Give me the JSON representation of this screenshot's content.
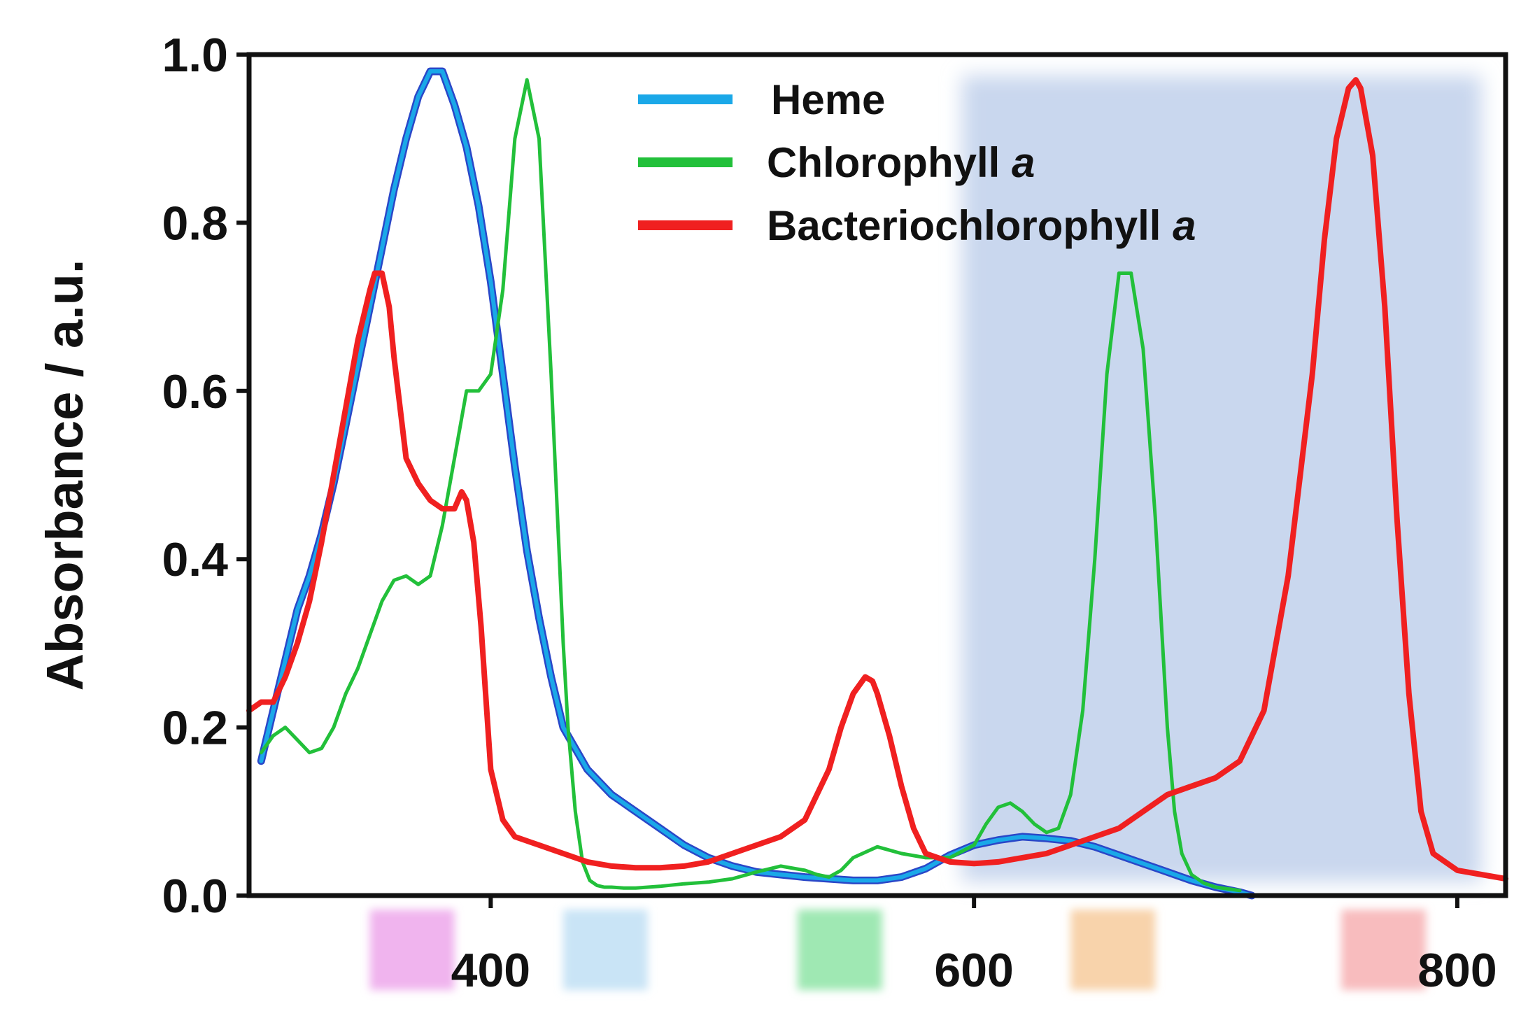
{
  "chart_data": {
    "type": "line",
    "title": "",
    "xlabel": "",
    "ylabel": "Absorbance / a.u.",
    "xlim": [
      300,
      820
    ],
    "ylim": [
      0,
      1.0
    ],
    "x_ticks": [
      400,
      600,
      800
    ],
    "x_tick_labels": [
      "400",
      "600",
      "800"
    ],
    "y_ticks": [
      0.0,
      0.2,
      0.4,
      0.6,
      0.8,
      1.0
    ],
    "y_tick_labels": [
      "0.0",
      "0.2",
      "0.4",
      "0.6",
      "0.8",
      "1.0"
    ],
    "grid": false,
    "legend_position": "top-center",
    "shaded_region": {
      "x_start": 595,
      "x_end": 810,
      "color": "#c9d7ee"
    },
    "color_bands": [
      {
        "x_start": 350,
        "x_end": 385,
        "color": "#f0b4ee"
      },
      {
        "x_start": 430,
        "x_end": 465,
        "color": "#c9e4f6"
      },
      {
        "x_start": 527,
        "x_end": 562,
        "color": "#9fe8b3"
      },
      {
        "x_start": 640,
        "x_end": 675,
        "color": "#f8d3ab"
      },
      {
        "x_start": 752,
        "x_end": 787,
        "color": "#f8bcbe"
      }
    ],
    "series": [
      {
        "name": "Heme",
        "legend_label": "Heme",
        "legend_italic": "",
        "color": "#1aa8e8",
        "x": [
          305,
          310,
          315,
          320,
          325,
          330,
          335,
          340,
          345,
          350,
          355,
          360,
          365,
          370,
          375,
          380,
          385,
          390,
          395,
          400,
          405,
          410,
          415,
          420,
          425,
          430,
          440,
          450,
          460,
          470,
          480,
          490,
          500,
          510,
          520,
          530,
          540,
          550,
          560,
          570,
          580,
          590,
          600,
          610,
          620,
          630,
          640,
          650,
          660,
          670,
          680,
          690,
          700,
          710,
          715
        ],
        "values": [
          0.16,
          0.22,
          0.28,
          0.34,
          0.38,
          0.43,
          0.49,
          0.56,
          0.63,
          0.7,
          0.77,
          0.84,
          0.9,
          0.95,
          0.98,
          0.98,
          0.94,
          0.89,
          0.82,
          0.73,
          0.62,
          0.51,
          0.41,
          0.33,
          0.26,
          0.2,
          0.15,
          0.12,
          0.1,
          0.08,
          0.06,
          0.045,
          0.035,
          0.028,
          0.025,
          0.022,
          0.02,
          0.018,
          0.018,
          0.022,
          0.032,
          0.048,
          0.06,
          0.066,
          0.07,
          0.068,
          0.065,
          0.058,
          0.048,
          0.038,
          0.028,
          0.018,
          0.01,
          0.004,
          0.0
        ]
      },
      {
        "name": "Chlorophyll a",
        "legend_label": "Chlorophyll ",
        "legend_italic": "a",
        "color": "#22c03a",
        "x": [
          305,
          310,
          315,
          320,
          325,
          330,
          335,
          340,
          345,
          350,
          355,
          360,
          365,
          370,
          375,
          380,
          385,
          390,
          395,
          400,
          405,
          410,
          415,
          420,
          425,
          430,
          432,
          435,
          438,
          441,
          444,
          447,
          450,
          455,
          460,
          470,
          480,
          490,
          500,
          510,
          520,
          530,
          535,
          540,
          545,
          550,
          560,
          570,
          580,
          590,
          600,
          605,
          610,
          615,
          620,
          625,
          630,
          635,
          640,
          645,
          650,
          655,
          660,
          665,
          670,
          675,
          678,
          680,
          683,
          686,
          690,
          695,
          700,
          705,
          710
        ],
        "values": [
          0.17,
          0.19,
          0.2,
          0.185,
          0.17,
          0.175,
          0.2,
          0.24,
          0.27,
          0.31,
          0.35,
          0.375,
          0.38,
          0.37,
          0.38,
          0.44,
          0.52,
          0.6,
          0.6,
          0.62,
          0.72,
          0.9,
          0.97,
          0.9,
          0.62,
          0.3,
          0.2,
          0.1,
          0.04,
          0.018,
          0.012,
          0.01,
          0.01,
          0.009,
          0.009,
          0.011,
          0.014,
          0.016,
          0.02,
          0.028,
          0.035,
          0.03,
          0.025,
          0.022,
          0.03,
          0.045,
          0.058,
          0.05,
          0.045,
          0.045,
          0.06,
          0.085,
          0.105,
          0.11,
          0.1,
          0.085,
          0.075,
          0.08,
          0.12,
          0.22,
          0.4,
          0.62,
          0.74,
          0.74,
          0.65,
          0.45,
          0.3,
          0.2,
          0.1,
          0.05,
          0.025,
          0.015,
          0.01,
          0.008,
          0.006
        ]
      },
      {
        "name": "Bacteriochlorophyll a",
        "legend_label": "Bacteriochlorophyll ",
        "legend_italic": "a",
        "color": "#f02020",
        "x": [
          300,
          305,
          310,
          315,
          320,
          325,
          330,
          335,
          340,
          345,
          350,
          352,
          355,
          358,
          360,
          365,
          370,
          375,
          380,
          385,
          388,
          390,
          393,
          396,
          400,
          405,
          410,
          420,
          430,
          440,
          450,
          460,
          470,
          480,
          490,
          500,
          510,
          520,
          530,
          540,
          545,
          550,
          555,
          558,
          560,
          565,
          570,
          575,
          580,
          590,
          600,
          610,
          620,
          630,
          640,
          650,
          660,
          670,
          680,
          690,
          700,
          710,
          720,
          730,
          740,
          745,
          750,
          755,
          758,
          760,
          765,
          770,
          775,
          780,
          785,
          790,
          800,
          810,
          820
        ],
        "values": [
          0.22,
          0.23,
          0.23,
          0.26,
          0.3,
          0.35,
          0.42,
          0.5,
          0.58,
          0.66,
          0.72,
          0.74,
          0.74,
          0.7,
          0.64,
          0.52,
          0.49,
          0.47,
          0.46,
          0.46,
          0.48,
          0.47,
          0.42,
          0.32,
          0.15,
          0.09,
          0.07,
          0.06,
          0.05,
          0.04,
          0.035,
          0.033,
          0.033,
          0.035,
          0.04,
          0.05,
          0.06,
          0.07,
          0.09,
          0.15,
          0.2,
          0.24,
          0.26,
          0.255,
          0.24,
          0.19,
          0.13,
          0.08,
          0.05,
          0.04,
          0.038,
          0.04,
          0.045,
          0.05,
          0.06,
          0.07,
          0.08,
          0.1,
          0.12,
          0.13,
          0.14,
          0.16,
          0.22,
          0.38,
          0.62,
          0.78,
          0.9,
          0.96,
          0.97,
          0.96,
          0.88,
          0.7,
          0.45,
          0.24,
          0.1,
          0.05,
          0.03,
          0.025,
          0.02
        ]
      }
    ]
  }
}
